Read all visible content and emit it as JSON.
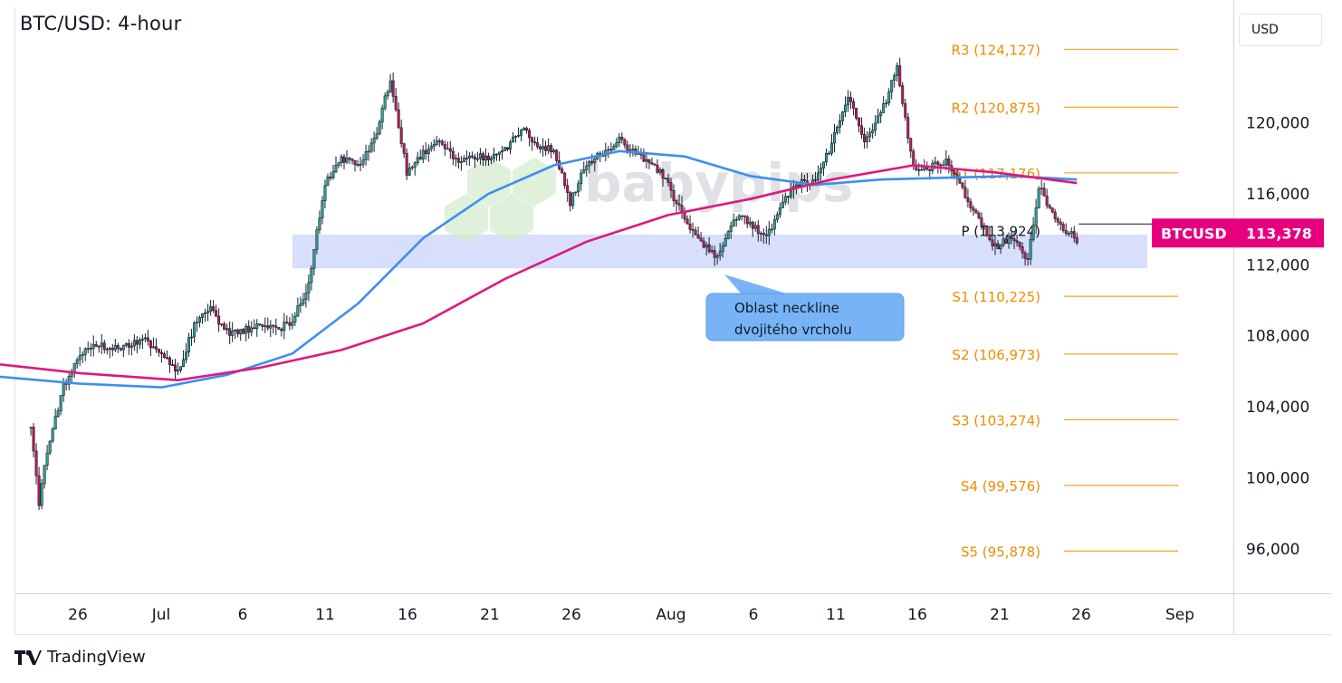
{
  "header": {
    "title": "BTC/USD: 4-hour",
    "currency": "USD"
  },
  "footer": {
    "brand": "TradingView"
  },
  "watermark": "babypips",
  "colors": {
    "up": "#26a69a",
    "down": "#c2185b",
    "candle_ink": "#1b1f2a",
    "ma_blue": "#3d8ff0",
    "ma_pink": "#e0187e",
    "pivot_line": "#f5a623",
    "pivot_text": "#f08c00",
    "zone": "#c6d2fb",
    "callout": "#78b4f5",
    "badge": "#e6007e"
  },
  "chart_data": {
    "type": "candlestick",
    "title": "BTC/USD: 4-hour",
    "timeframe": "4-hour",
    "x_ticks": [
      "26",
      "Jul",
      "6",
      "11",
      "16",
      "21",
      "26",
      "Aug",
      "6",
      "11",
      "16",
      "21",
      "26",
      "Sep"
    ],
    "y_ticks": [
      96000,
      100000,
      104000,
      108000,
      112000,
      116000,
      120000
    ],
    "y_tick_labels": [
      "96,000",
      "100,000",
      "104,000",
      "108,000",
      "112,000",
      "116,000",
      "120,000"
    ],
    "ylim": [
      93500,
      126500
    ],
    "price_path": [
      [
        "2025-06-22",
        102800
      ],
      [
        "2025-06-22T12",
        98600
      ],
      [
        "2025-06-23",
        101500
      ],
      [
        "2025-06-24",
        105200
      ],
      [
        "2025-06-25",
        106800
      ],
      [
        "2025-06-26",
        107600
      ],
      [
        "2025-06-27",
        107200
      ],
      [
        "2025-06-29",
        107800
      ],
      [
        "2025-06-30",
        107000
      ],
      [
        "2025-07-01",
        105900
      ],
      [
        "2025-07-02",
        108600
      ],
      [
        "2025-07-03",
        109500
      ],
      [
        "2025-07-04",
        108200
      ],
      [
        "2025-07-05",
        108300
      ],
      [
        "2025-07-06",
        108600
      ],
      [
        "2025-07-07",
        108400
      ],
      [
        "2025-07-08",
        108700
      ],
      [
        "2025-07-09",
        111000
      ],
      [
        "2025-07-10",
        116500
      ],
      [
        "2025-07-11",
        118000
      ],
      [
        "2025-07-12",
        117500
      ],
      [
        "2025-07-13",
        119000
      ],
      [
        "2025-07-14",
        122500
      ],
      [
        "2025-07-15",
        117200
      ],
      [
        "2025-07-16",
        118300
      ],
      [
        "2025-07-17",
        119000
      ],
      [
        "2025-07-18",
        117800
      ],
      [
        "2025-07-19",
        118100
      ],
      [
        "2025-07-20",
        118000
      ],
      [
        "2025-07-21",
        118500
      ],
      [
        "2025-07-22",
        119700
      ],
      [
        "2025-07-23",
        118700
      ],
      [
        "2025-07-24",
        118500
      ],
      [
        "2025-07-25",
        115500
      ],
      [
        "2025-07-26",
        117700
      ],
      [
        "2025-07-27",
        118300
      ],
      [
        "2025-07-28",
        119000
      ],
      [
        "2025-07-29",
        118200
      ],
      [
        "2025-07-30",
        117800
      ],
      [
        "2025-07-31",
        116500
      ],
      [
        "2025-08-01",
        114500
      ],
      [
        "2025-08-02",
        113200
      ],
      [
        "2025-08-03",
        112500
      ],
      [
        "2025-08-04",
        114700
      ],
      [
        "2025-08-05",
        114400
      ],
      [
        "2025-08-06",
        113500
      ],
      [
        "2025-08-07",
        115500
      ],
      [
        "2025-08-08",
        116600
      ],
      [
        "2025-08-09",
        116600
      ],
      [
        "2025-08-10",
        118800
      ],
      [
        "2025-08-11",
        121500
      ],
      [
        "2025-08-12",
        118800
      ],
      [
        "2025-08-13",
        120500
      ],
      [
        "2025-08-14",
        123000
      ],
      [
        "2025-08-15",
        117500
      ],
      [
        "2025-08-16",
        117500
      ],
      [
        "2025-08-17",
        117800
      ],
      [
        "2025-08-18",
        116200
      ],
      [
        "2025-08-19",
        114600
      ],
      [
        "2025-08-20",
        113000
      ],
      [
        "2025-08-21",
        113600
      ],
      [
        "2025-08-22",
        112300
      ],
      [
        "2025-08-22T18",
        116800
      ],
      [
        "2025-08-23",
        115800
      ],
      [
        "2025-08-24",
        114200
      ],
      [
        "2025-08-25",
        113378
      ]
    ],
    "series": [
      {
        "name": "",
        "color": "#3d8ff0",
        "points": [
          [
            "2025-06-20",
            105700
          ],
          [
            "2025-06-25",
            105300
          ],
          [
            "2025-06-30",
            105100
          ],
          [
            "2025-07-04",
            105800
          ],
          [
            "2025-07-08",
            107000
          ],
          [
            "2025-07-12",
            109800
          ],
          [
            "2025-07-16",
            113500
          ],
          [
            "2025-07-20",
            116000
          ],
          [
            "2025-07-24",
            117600
          ],
          [
            "2025-07-28",
            118400
          ],
          [
            "2025-08-01",
            118100
          ],
          [
            "2025-08-05",
            117000
          ],
          [
            "2025-08-09",
            116500
          ],
          [
            "2025-08-13",
            116800
          ],
          [
            "2025-08-17",
            116900
          ],
          [
            "2025-08-21",
            117000
          ],
          [
            "2025-08-25",
            116800
          ]
        ]
      },
      {
        "name": "",
        "color": "#e0187e",
        "points": [
          [
            "2025-06-20",
            106400
          ],
          [
            "2025-06-25",
            105900
          ],
          [
            "2025-07-01",
            105500
          ],
          [
            "2025-07-06",
            106200
          ],
          [
            "2025-07-11",
            107200
          ],
          [
            "2025-07-16",
            108700
          ],
          [
            "2025-07-21",
            111200
          ],
          [
            "2025-07-26",
            113300
          ],
          [
            "2025-07-31",
            114800
          ],
          [
            "2025-08-05",
            115700
          ],
          [
            "2025-08-10",
            116800
          ],
          [
            "2025-08-15",
            117600
          ],
          [
            "2025-08-20",
            117200
          ],
          [
            "2025-08-25",
            116600
          ]
        ]
      }
    ],
    "pivot_levels": [
      {
        "label": "R3 (124,127)",
        "value": 124127
      },
      {
        "label": "R2 (120,875)",
        "value": 120875
      },
      {
        "label": "R1 (117,176)",
        "value": 117176
      },
      {
        "label": "P (113,924)",
        "value": 113924
      },
      {
        "label": "S1 (110,225)",
        "value": 110225
      },
      {
        "label": "S2 (106,973)",
        "value": 106973
      },
      {
        "label": "S3 (103,274)",
        "value": 103274
      },
      {
        "label": "S4 (99,576)",
        "value": 99576
      },
      {
        "label": "S5 (95,878)",
        "value": 95878
      }
    ],
    "zone": {
      "from": 111800,
      "to": 113700,
      "start": "2025-07-08",
      "end": "2025-09-01"
    },
    "annotation": {
      "text_lines": [
        "Oblast neckline",
        "dvojitého vrcholu"
      ]
    },
    "last_price": {
      "symbol": "BTCUSD",
      "value": 113378,
      "label": "113,378"
    }
  }
}
